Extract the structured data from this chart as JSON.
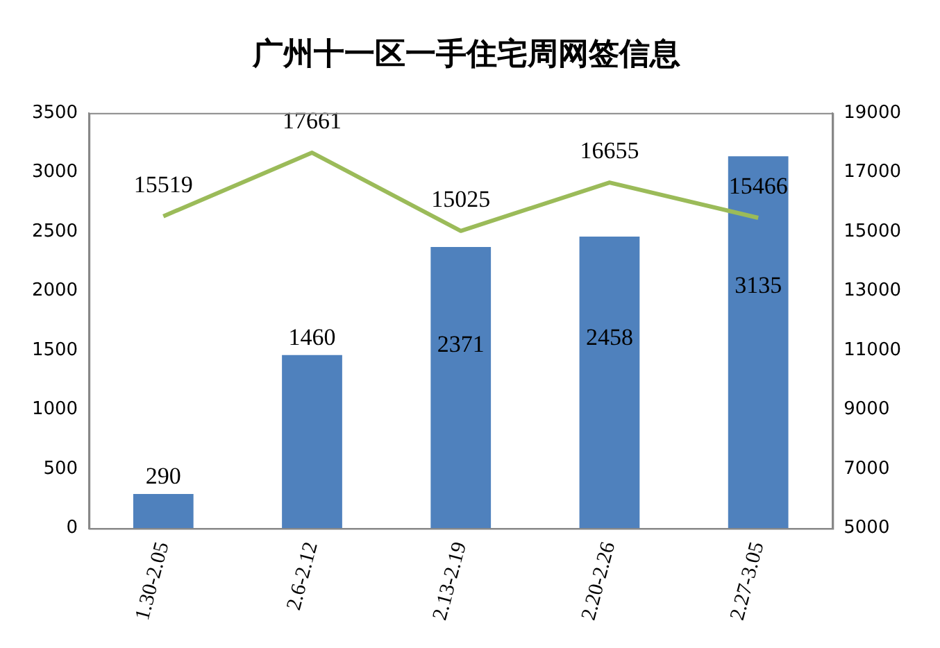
{
  "chart_data": {
    "type": "bar",
    "title": "广州十一区一手住宅周网签信息",
    "categories": [
      "1.30-2.05",
      "2.6-2.12",
      "2.13-2.19",
      "2.20-2.26",
      "2.27-3.05"
    ],
    "series": [
      {
        "color": "#4f81bd",
        "values": [
          290,
          1460,
          2371,
          2458,
          3135
        ]
      },
      {
        "type": "line",
        "axis": "y2",
        "color": "#9bbb59",
        "values": [
          15519,
          17661,
          15025,
          16655,
          15466
        ]
      }
    ],
    "ylim": [
      0,
      3500
    ],
    "yticks": [
      0,
      500,
      1000,
      1500,
      2000,
      2500,
      3000,
      3500
    ],
    "y2lim": [
      5000,
      19000
    ],
    "y2ticks": [
      5000,
      7000,
      9000,
      11000,
      13000,
      15000,
      17000,
      19000
    ],
    "grid": false,
    "legend": false,
    "marker": "none",
    "data_labels": true
  }
}
